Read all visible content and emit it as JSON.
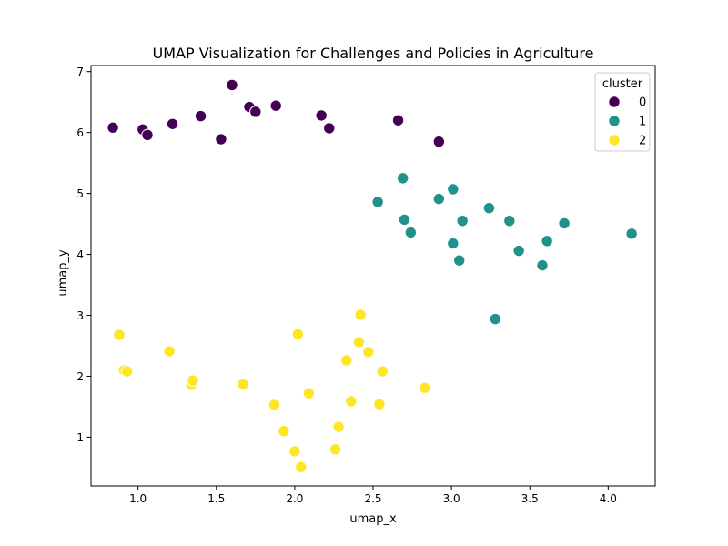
{
  "chart_data": {
    "type": "scatter",
    "title": "UMAP Visualization for Challenges and Policies in Agriculture",
    "xlabel": "umap_x",
    "ylabel": "umap_y",
    "xlim": [
      0.7,
      4.3
    ],
    "ylim": [
      0.2,
      7.1
    ],
    "xticks": [
      1.0,
      1.5,
      2.0,
      2.5,
      3.0,
      3.5,
      4.0
    ],
    "xtick_labels": [
      "1.0",
      "1.5",
      "2.0",
      "2.5",
      "3.0",
      "3.5",
      "4.0"
    ],
    "yticks": [
      1,
      2,
      3,
      4,
      5,
      6,
      7
    ],
    "ytick_labels": [
      "1",
      "2",
      "3",
      "4",
      "5",
      "6",
      "7"
    ],
    "grid": false,
    "legend": {
      "title": "cluster",
      "position": "top-right"
    },
    "series": [
      {
        "name": "0",
        "color": "#440154",
        "points": [
          [
            0.84,
            6.08
          ],
          [
            1.03,
            6.05
          ],
          [
            1.06,
            5.96
          ],
          [
            1.22,
            6.14
          ],
          [
            1.4,
            6.27
          ],
          [
            1.53,
            5.89
          ],
          [
            1.6,
            6.78
          ],
          [
            1.71,
            6.42
          ],
          [
            1.75,
            6.34
          ],
          [
            1.88,
            6.44
          ],
          [
            2.17,
            6.28
          ],
          [
            2.22,
            6.07
          ],
          [
            2.66,
            6.2
          ],
          [
            2.92,
            5.85
          ]
        ]
      },
      {
        "name": "1",
        "color": "#21918c",
        "points": [
          [
            2.53,
            4.86
          ],
          [
            2.69,
            5.25
          ],
          [
            2.7,
            4.57
          ],
          [
            2.74,
            4.36
          ],
          [
            2.92,
            4.91
          ],
          [
            3.01,
            5.07
          ],
          [
            3.01,
            4.18
          ],
          [
            3.05,
            3.9
          ],
          [
            3.07,
            4.55
          ],
          [
            3.24,
            4.76
          ],
          [
            3.28,
            2.94
          ],
          [
            3.37,
            4.55
          ],
          [
            3.43,
            4.06
          ],
          [
            3.58,
            3.82
          ],
          [
            3.61,
            4.22
          ],
          [
            3.72,
            4.51
          ],
          [
            4.15,
            4.34
          ]
        ]
      },
      {
        "name": "2",
        "color": "#fde725",
        "points": [
          [
            0.88,
            2.68
          ],
          [
            0.91,
            2.1
          ],
          [
            0.93,
            2.08
          ],
          [
            1.2,
            2.41
          ],
          [
            1.34,
            1.86
          ],
          [
            1.35,
            1.93
          ],
          [
            1.67,
            1.87
          ],
          [
            1.87,
            1.53
          ],
          [
            1.93,
            1.1
          ],
          [
            2.0,
            0.77
          ],
          [
            2.02,
            2.69
          ],
          [
            2.04,
            0.51
          ],
          [
            2.09,
            1.72
          ],
          [
            2.26,
            0.8
          ],
          [
            2.28,
            1.17
          ],
          [
            2.33,
            2.26
          ],
          [
            2.36,
            1.59
          ],
          [
            2.41,
            2.56
          ],
          [
            2.42,
            3.01
          ],
          [
            2.47,
            2.4
          ],
          [
            2.54,
            1.54
          ],
          [
            2.56,
            2.08
          ],
          [
            2.83,
            1.81
          ]
        ]
      }
    ]
  }
}
